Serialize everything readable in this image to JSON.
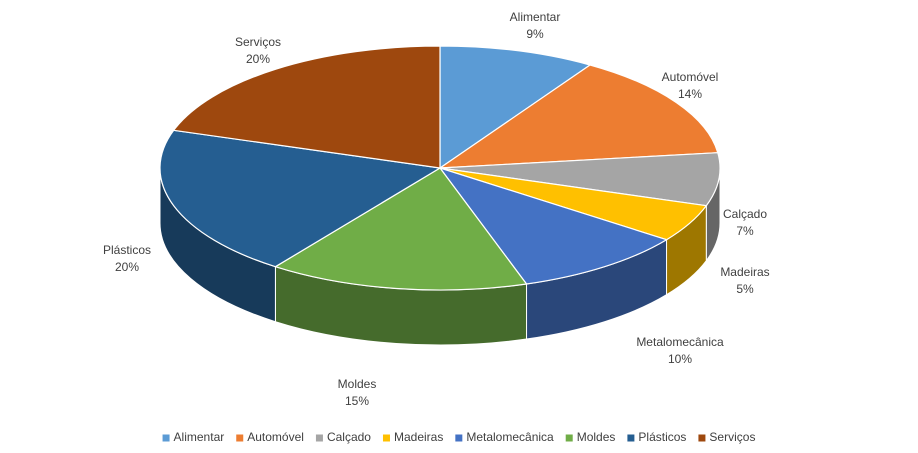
{
  "chart_data": {
    "type": "pie3d",
    "categories": [
      "Alimentar",
      "Automóvel",
      "Calçado",
      "Madeiras",
      "Metalomecânica",
      "Moldes",
      "Plásticos",
      "Serviços"
    ],
    "values": [
      9,
      14,
      7,
      5,
      10,
      15,
      20,
      20
    ],
    "value_labels": [
      "9%",
      "14%",
      "7%",
      "5%",
      "10%",
      "15%",
      "20%",
      "20%"
    ],
    "colors": [
      "#5b9bd5",
      "#ed7d31",
      "#a5a5a5",
      "#ffc000",
      "#4472c4",
      "#70ad47",
      "#255e91",
      "#9e480e"
    ],
    "legend": "bottom"
  }
}
